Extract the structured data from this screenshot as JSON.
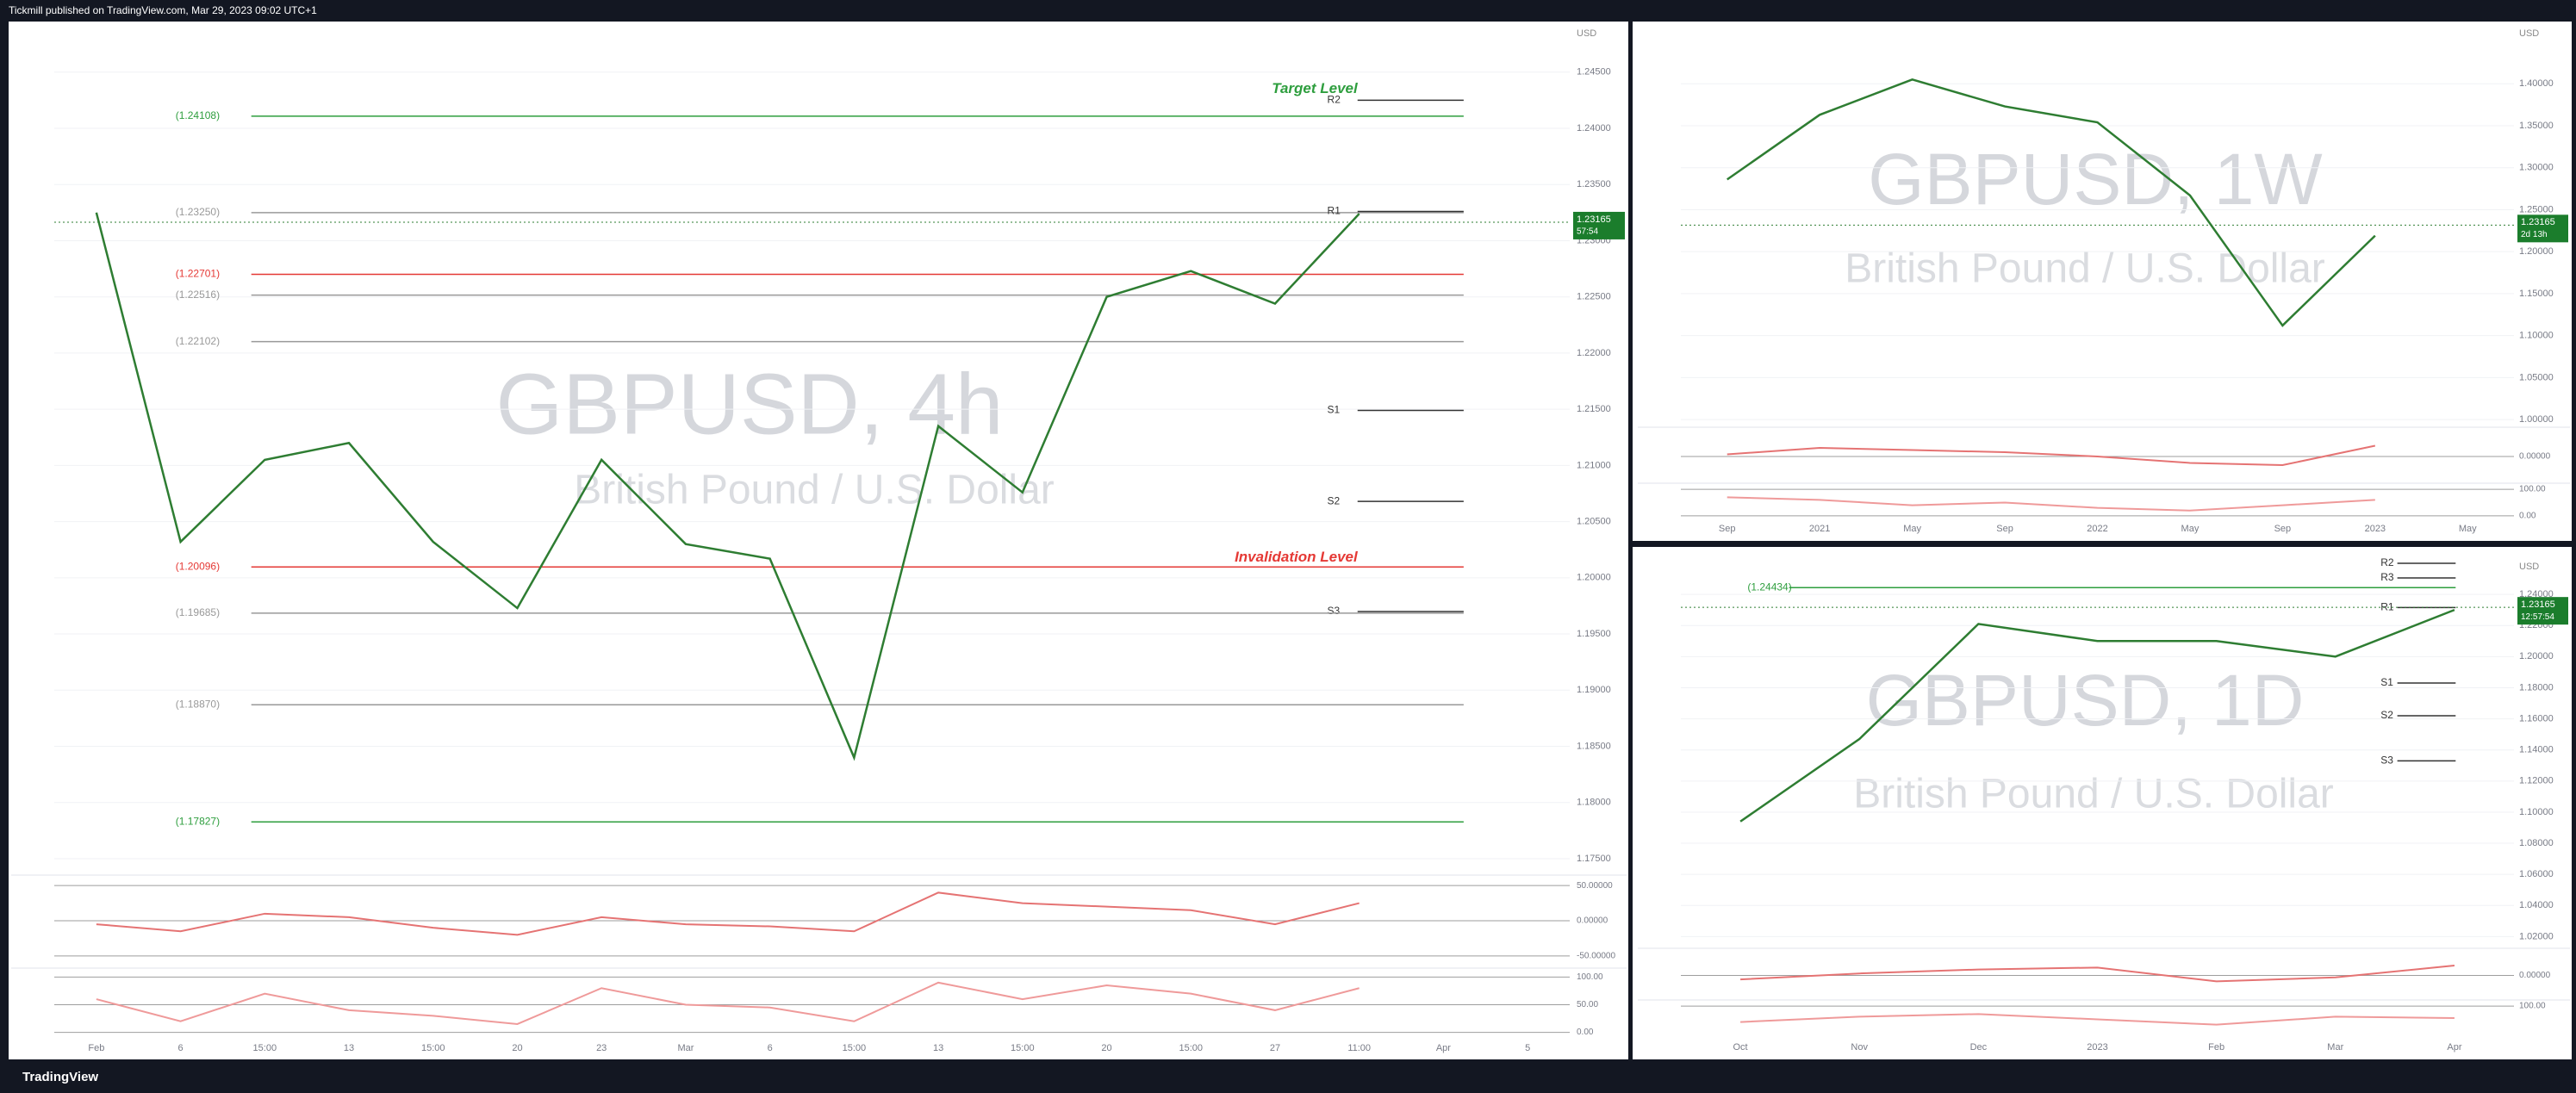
{
  "header": "Tickmill published on TradingView.com, Mar 29, 2023 09:02 UTC+1",
  "footer": "TradingView",
  "chart_data": [
    {
      "type": "line",
      "watermark": "GBPUSD, 4h",
      "subtitle": "British Pound / U.S. Dollar",
      "currency": "USD",
      "color": "#2e7d32",
      "grid": true,
      "categories": [
        "Feb",
        "6",
        "15:00",
        "13",
        "15:00",
        "20",
        "23",
        "Mar",
        "6",
        "15:00",
        "13",
        "15:00",
        "20",
        "15:00",
        "27",
        "11:00",
        "Apr",
        "5"
      ],
      "values": [
        1.2325,
        1.2032,
        1.2105,
        1.212,
        1.2032,
        1.1973,
        1.2105,
        1.203,
        1.2017,
        1.184,
        1.2135,
        1.2076,
        1.225,
        1.2273,
        1.2244,
        1.2324,
        null,
        null
      ],
      "ylim": [
        1.174,
        1.2492
      ],
      "yticks": [
        {
          "value": 1.245,
          "label": "1.24500"
        },
        {
          "value": 1.24,
          "label": "1.24000"
        },
        {
          "value": 1.235,
          "label": "1.23500"
        },
        {
          "value": 1.23,
          "label": "1.23000"
        },
        {
          "value": 1.225,
          "label": "1.22500"
        },
        {
          "value": 1.22,
          "label": "1.22000"
        },
        {
          "value": 1.215,
          "label": "1.21500"
        },
        {
          "value": 1.21,
          "label": "1.21000"
        },
        {
          "value": 1.205,
          "label": "1.20500"
        },
        {
          "value": 1.2,
          "label": "1.20000"
        },
        {
          "value": 1.195,
          "label": "1.19500"
        },
        {
          "value": 1.19,
          "label": "1.19000"
        },
        {
          "value": 1.185,
          "label": "1.18500"
        },
        {
          "value": 1.18,
          "label": "1.18000"
        },
        {
          "value": 1.175,
          "label": "1.17500"
        }
      ],
      "last_price": 1.23165,
      "countdown": "57:54",
      "levels": [
        {
          "label": "Target Level",
          "value": 1.2435,
          "color": "#2e9e3e"
        },
        {
          "label": "(1.24108)",
          "value": 1.24108,
          "color": "#2e9e3e"
        },
        {
          "label": "R2",
          "value": 1.2425,
          "color": "#333333"
        },
        {
          "label": "(1.23250)",
          "value": 1.2325,
          "color": "#999999"
        },
        {
          "label": "R1",
          "value": 1.2326,
          "color": "#333333"
        },
        {
          "label": "(1.22701)",
          "value": 1.22701,
          "color": "#e53935"
        },
        {
          "label": "(1.22516)",
          "value": 1.22516,
          "color": "#999999"
        },
        {
          "label": "(1.22102)",
          "value": 1.22102,
          "color": "#999999"
        },
        {
          "label": "S1",
          "value": 1.2149,
          "color": "#333333"
        },
        {
          "label": "S2",
          "value": 1.2068,
          "color": "#333333"
        },
        {
          "label": "Invalidation Level",
          "value": 1.2018,
          "color": "#e53935"
        },
        {
          "label": "(1.20096)",
          "value": 1.20096,
          "color": "#e53935"
        },
        {
          "label": "S3",
          "value": 1.197,
          "color": "#333333"
        },
        {
          "label": "(1.19685)",
          "value": 1.19685,
          "color": "#999999"
        },
        {
          "label": "(1.18870)",
          "value": 1.1887,
          "color": "#999999"
        },
        {
          "label": "(1.17827)",
          "value": 1.17827,
          "color": "#2e9e3e"
        }
      ],
      "oscillator": {
        "ylim": [
          -60,
          60
        ],
        "yticks": [
          {
            "value": 50,
            "label": "50.00000"
          },
          {
            "value": 0,
            "label": "0.00000"
          },
          {
            "value": -50,
            "label": "-50.00000"
          }
        ],
        "values": [
          -5,
          -15,
          10,
          5,
          -10,
          -20,
          5,
          -5,
          -8,
          -15,
          40,
          25,
          20,
          15,
          -5,
          25,
          null,
          null
        ]
      },
      "stochastic": {
        "ylim": [
          -10,
          110
        ],
        "yticks": [
          {
            "value": 100,
            "label": "100.00"
          },
          {
            "value": 50,
            "label": "50.00"
          },
          {
            "value": 0,
            "label": "0.00"
          }
        ],
        "values": [
          60,
          20,
          70,
          40,
          30,
          15,
          80,
          50,
          45,
          20,
          90,
          60,
          85,
          70,
          40,
          80,
          null,
          null
        ]
      }
    },
    {
      "type": "line",
      "watermark": "GBPUSD, 1W",
      "subtitle": "British Pound / U.S. Dollar",
      "currency": "USD",
      "color": "#2e7d32",
      "grid": true,
      "categories": [
        "Sep",
        "2021",
        "May",
        "Sep",
        "2022",
        "May",
        "Sep",
        "2023",
        "May"
      ],
      "values": [
        1.286,
        1.363,
        1.405,
        1.373,
        1.354,
        1.267,
        1.112,
        1.219,
        null
      ],
      "ylim": [
        0.995,
        1.47
      ],
      "yticks": [
        {
          "value": 1.4,
          "label": "1.40000"
        },
        {
          "value": 1.35,
          "label": "1.35000"
        },
        {
          "value": 1.3,
          "label": "1.30000"
        },
        {
          "value": 1.25,
          "label": "1.25000"
        },
        {
          "value": 1.2,
          "label": "1.20000"
        },
        {
          "value": 1.15,
          "label": "1.15000"
        },
        {
          "value": 1.1,
          "label": "1.10000"
        },
        {
          "value": 1.05,
          "label": "1.05000"
        },
        {
          "value": 1,
          "label": "1.00000"
        }
      ],
      "last_price": 1.23165,
      "countdown": "2d 13h",
      "oscillator": {
        "ylim": [
          -60,
          60
        ],
        "yticks": [
          {
            "value": 0,
            "label": "0.00000"
          }
        ],
        "values": [
          5,
          20,
          15,
          10,
          0,
          -15,
          -20,
          25,
          null
        ]
      },
      "stochastic": {
        "ylim": [
          -10,
          110
        ],
        "yticks": [
          {
            "value": 100,
            "label": "100.00"
          },
          {
            "value": 0,
            "label": "0.00"
          }
        ],
        "values": [
          70,
          60,
          40,
          50,
          30,
          20,
          40,
          60,
          null
        ]
      }
    },
    {
      "type": "line",
      "watermark": "GBPUSD, 1D",
      "subtitle": "British Pound / U.S. Dollar",
      "currency": "USD",
      "color": "#2e7d32",
      "grid": true,
      "categories": [
        "Oct",
        "Nov",
        "Dec",
        "2023",
        "Feb",
        "Mar",
        "Apr"
      ],
      "values": [
        1.094,
        1.147,
        1.221,
        1.21,
        1.21,
        1.2,
        1.23
      ],
      "ylim": [
        1.0147,
        1.2633
      ],
      "yticks": [
        {
          "value": 1.24,
          "label": "1.24000"
        },
        {
          "value": 1.22,
          "label": "1.22000"
        },
        {
          "value": 1.2,
          "label": "1.20000"
        },
        {
          "value": 1.18,
          "label": "1.18000"
        },
        {
          "value": 1.16,
          "label": "1.16000"
        },
        {
          "value": 1.14,
          "label": "1.14000"
        },
        {
          "value": 1.12,
          "label": "1.12000"
        },
        {
          "value": 1.1,
          "label": "1.10000"
        },
        {
          "value": 1.08,
          "label": "1.08000"
        },
        {
          "value": 1.06,
          "label": "1.06000"
        },
        {
          "value": 1.04,
          "label": "1.04000"
        },
        {
          "value": 1.02,
          "label": "1.02000"
        }
      ],
      "last_price": 1.23165,
      "countdown": "12:57:54",
      "levels": [
        {
          "label": "(1.24434)",
          "value": 1.24434,
          "color": "#2e9e3e"
        },
        {
          "label": "R2",
          "value": 1.26,
          "color": "#333333"
        },
        {
          "label": "R3",
          "value": 1.2506,
          "color": "#333333"
        },
        {
          "label": "R1",
          "value": 1.2315,
          "color": "#333333"
        },
        {
          "label": "S1",
          "value": 1.183,
          "color": "#333333"
        },
        {
          "label": "S2",
          "value": 1.162,
          "color": "#333333"
        },
        {
          "label": "S3",
          "value": 1.133,
          "color": "#333333"
        }
      ],
      "oscillator": {
        "ylim": [
          -60,
          60
        ],
        "yticks": [
          {
            "value": 0,
            "label": "0.00000"
          }
        ],
        "values": [
          -10,
          5,
          15,
          20,
          -15,
          -5,
          25
        ]
      },
      "stochastic": {
        "ylim": [
          -10,
          110
        ],
        "yticks": [
          {
            "value": 100,
            "label": "100.00"
          }
        ],
        "values": [
          40,
          60,
          70,
          50,
          30,
          60,
          55
        ]
      }
    }
  ]
}
